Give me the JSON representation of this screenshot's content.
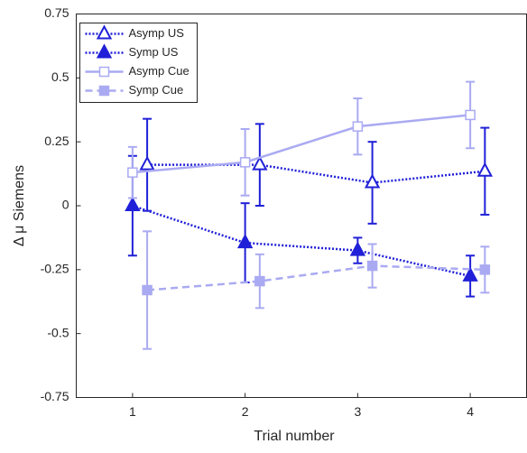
{
  "chart_data": {
    "type": "line",
    "x_label": "Trial number",
    "y_label": "Δ μ Siemens",
    "xlim": [
      0.5,
      4.5
    ],
    "xticks": [
      1,
      2,
      3,
      4
    ],
    "ylim": [
      -0.75,
      0.75
    ],
    "yticks": [
      -0.75,
      -0.5,
      -0.25,
      0,
      0.25,
      0.5,
      0.75
    ],
    "legend": "upper-left",
    "series": [
      {
        "name": "Asymp US",
        "color": "#2020d8",
        "line_style": "dotted",
        "marker": "triangle",
        "filled": false,
        "x": [
          1.13,
          2.13,
          3.13,
          4.13
        ],
        "values": [
          0.16,
          0.16,
          0.09,
          0.135
        ],
        "errors": [
          0.18,
          0.16,
          0.16,
          0.17
        ]
      },
      {
        "name": "Symp US",
        "color": "#2020d8",
        "line_style": "dotted",
        "marker": "triangle",
        "filled": true,
        "x": [
          1,
          2,
          3,
          4
        ],
        "values": [
          0,
          -0.145,
          -0.175,
          -0.275
        ],
        "errors": [
          0.195,
          0.155,
          0.05,
          0.08
        ]
      },
      {
        "name": "Asymp Cue",
        "color": "#aaaaf2",
        "line_style": "solid",
        "marker": "square",
        "filled": false,
        "x": [
          1,
          2,
          3,
          4
        ],
        "values": [
          0.13,
          0.17,
          0.31,
          0.355
        ],
        "errors": [
          0.1,
          0.13,
          0.11,
          0.13
        ]
      },
      {
        "name": "Symp Cue",
        "color": "#aaaaf2",
        "line_style": "dashed",
        "marker": "square",
        "filled": true,
        "x": [
          1.13,
          2.13,
          3.13,
          4.13
        ],
        "values": [
          -0.33,
          -0.295,
          -0.235,
          -0.25
        ],
        "errors": [
          0.23,
          0.105,
          0.085,
          0.09
        ]
      }
    ]
  }
}
